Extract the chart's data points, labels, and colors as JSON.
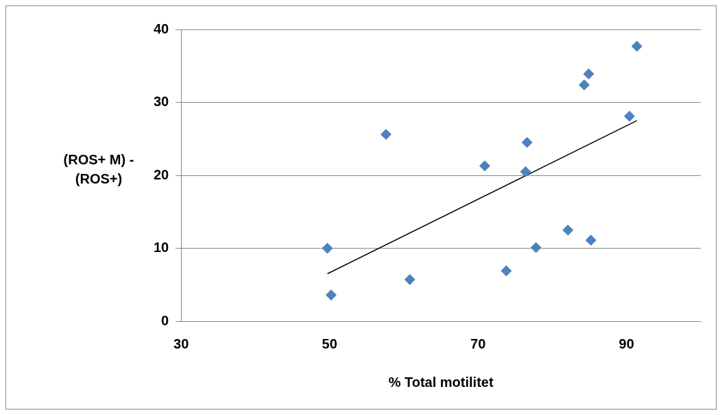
{
  "chart_data": {
    "type": "scatter",
    "xlabel": "% Total motilitet",
    "ylabel": "(ROS+ M) - (ROS+)",
    "xlim": [
      30,
      100
    ],
    "xticks": [
      30,
      50,
      70,
      90
    ],
    "ylim": [
      0,
      40
    ],
    "yticks": [
      0,
      10,
      20,
      30,
      40
    ],
    "grid": "y",
    "legend": false,
    "series": [
      {
        "marker": "diamond",
        "color": "#4f81bd",
        "x": [
          49.7,
          50.2,
          57.6,
          60.8,
          70.9,
          73.8,
          76.6,
          76.4,
          77.8,
          82.1,
          84.3,
          84.9,
          85.2,
          90.4,
          91.4
        ],
        "values": [
          10.0,
          3.6,
          25.6,
          5.7,
          21.3,
          6.9,
          24.5,
          20.5,
          10.1,
          12.5,
          32.4,
          33.9,
          11.1,
          28.1,
          37.7
        ]
      },
      {
        "type": "line",
        "marker": "none",
        "color": "#000000",
        "x": [
          49.7,
          91.4
        ],
        "values": [
          6.5,
          27.5
        ]
      }
    ]
  }
}
